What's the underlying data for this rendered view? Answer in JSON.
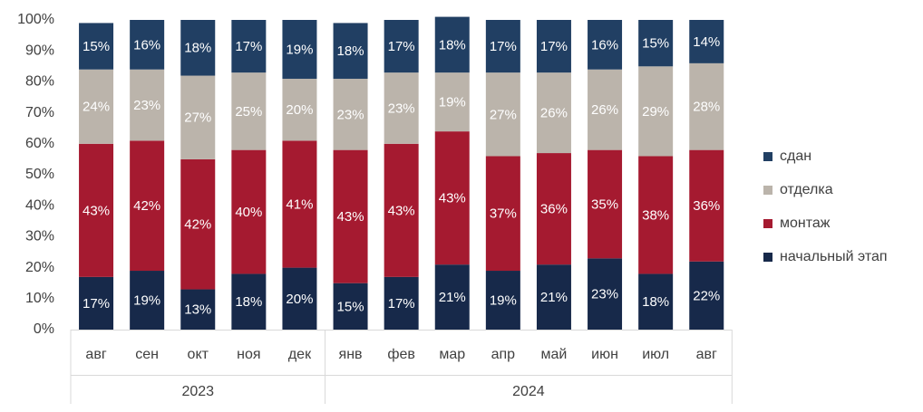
{
  "chart_data": {
    "type": "bar",
    "stacked": true,
    "percent": true,
    "categories": [
      "авг",
      "сен",
      "окт",
      "ноя",
      "дек",
      "янв",
      "фев",
      "мар",
      "апр",
      "май",
      "июн",
      "июл",
      "авг"
    ],
    "years": [
      {
        "label": "2023",
        "start": 0,
        "end": 4
      },
      {
        "label": "2024",
        "start": 5,
        "end": 12
      }
    ],
    "ylim": [
      0,
      100
    ],
    "yticks": [
      "0%",
      "10%",
      "20%",
      "30%",
      "40%",
      "50%",
      "60%",
      "70%",
      "80%",
      "90%",
      "100%"
    ],
    "series": [
      {
        "name": "начальный этап",
        "color": "#17294a",
        "values": [
          17,
          19,
          13,
          18,
          20,
          15,
          17,
          21,
          19,
          21,
          23,
          18,
          22
        ],
        "labels": [
          "17%",
          "19%",
          "13%",
          "18%",
          "20%",
          "15%",
          "17%",
          "21%",
          "19%",
          "21%",
          "23%",
          "18%",
          "22%"
        ]
      },
      {
        "name": "монтаж",
        "color": "#a51a30",
        "values": [
          43,
          42,
          42,
          40,
          41,
          43,
          43,
          43,
          37,
          36,
          35,
          38,
          36
        ],
        "labels": [
          "43%",
          "42%",
          "42%",
          "40%",
          "41%",
          "43%",
          "43%",
          "43%",
          "37%",
          "36%",
          "35%",
          "38%",
          "36%"
        ]
      },
      {
        "name": "отделка",
        "color": "#bbb4ab",
        "values": [
          24,
          23,
          27,
          25,
          20,
          23,
          23,
          19,
          27,
          26,
          26,
          29,
          28
        ],
        "labels": [
          "24%",
          "23%",
          "27%",
          "25%",
          "20%",
          "23%",
          "23%",
          "19%",
          "27%",
          "26%",
          "26%",
          "29%",
          "28%"
        ]
      },
      {
        "name": "сдан",
        "color": "#213f63",
        "values": [
          15,
          16,
          18,
          17,
          19,
          18,
          17,
          18,
          17,
          17,
          16,
          15,
          14
        ],
        "labels": [
          "15%",
          "16%",
          "18%",
          "17%",
          "19%",
          "18%",
          "17%",
          "18%",
          "17%",
          "17%",
          "16%",
          "15%",
          "14%"
        ]
      }
    ],
    "legend_position": "right",
    "grid": false
  }
}
